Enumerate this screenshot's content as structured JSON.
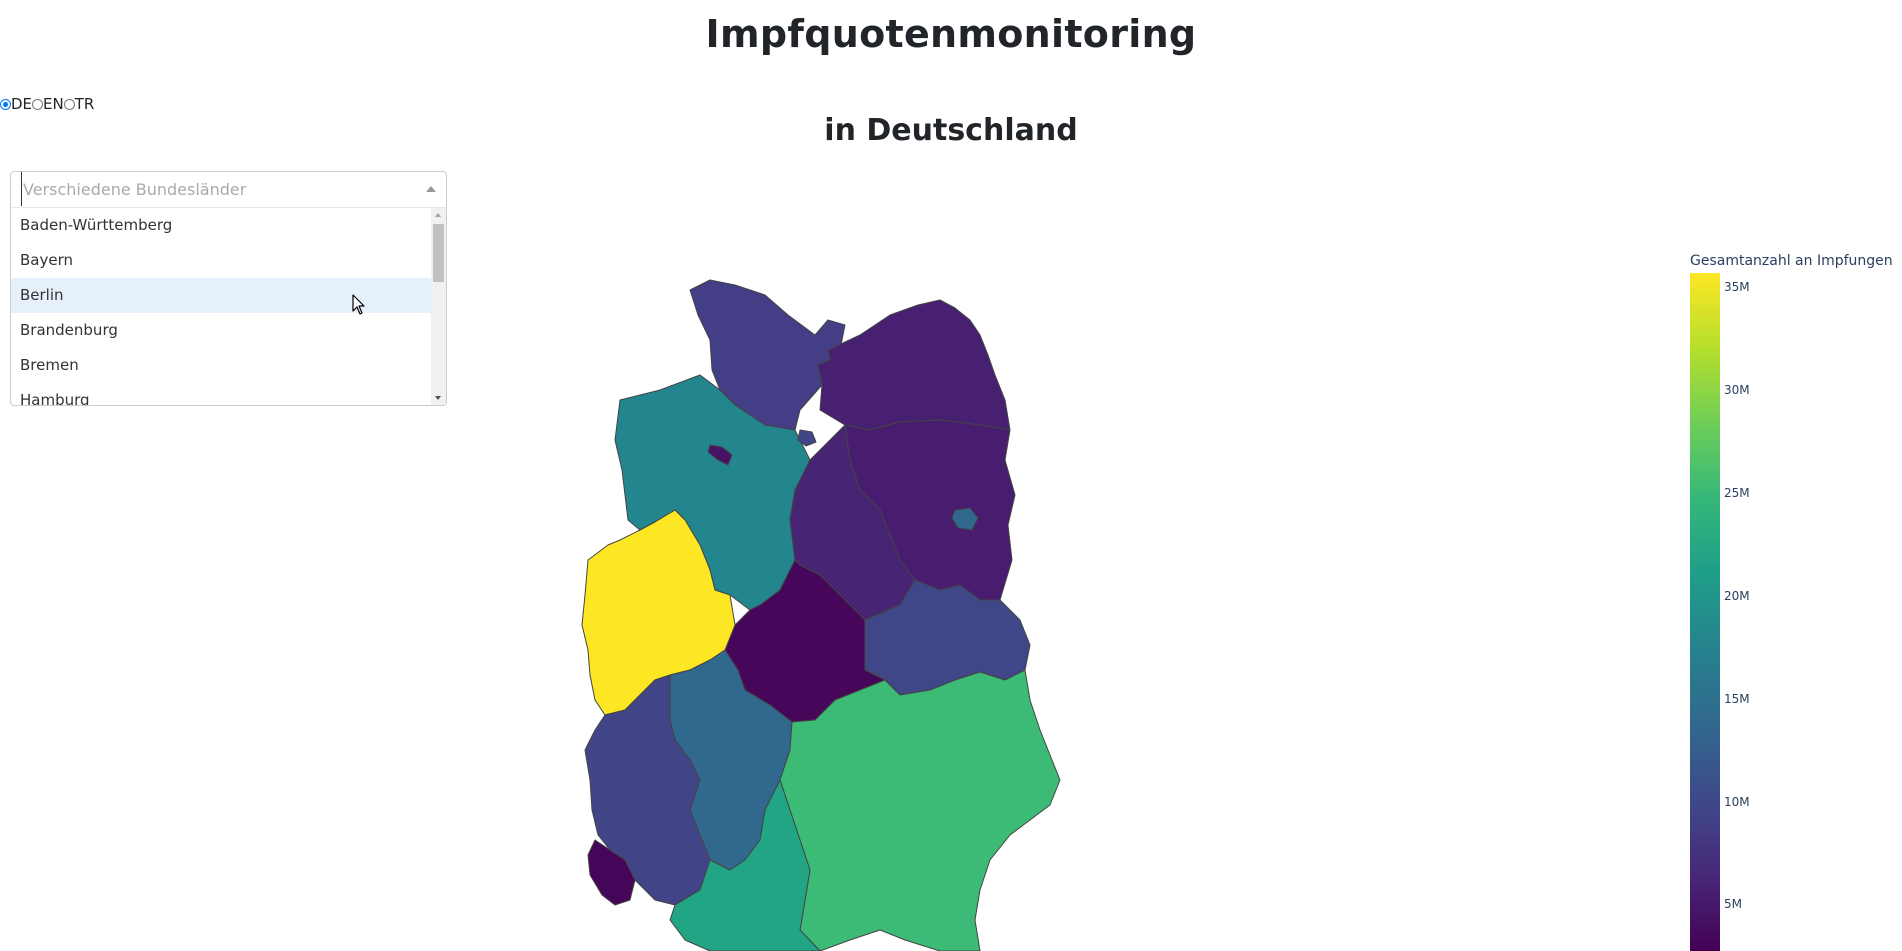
{
  "header": {
    "title": "Impfquotenmonitoring",
    "subtitle": "in Deutschland"
  },
  "language": {
    "options": [
      {
        "label": "DE",
        "selected": true
      },
      {
        "label": "EN",
        "selected": false
      },
      {
        "label": "TR",
        "selected": false
      }
    ]
  },
  "dropdown": {
    "placeholder": "Verschiedene Bundesländer",
    "items": [
      "Baden-Württemberg",
      "Bayern",
      "Berlin",
      "Brandenburg",
      "Bremen",
      "Hamburg"
    ],
    "focused": "Berlin"
  },
  "colorbar": {
    "title": "Gesamtanzahl an Impfungen",
    "ticks": [
      "35M",
      "30M",
      "25M",
      "20M",
      "15M",
      "10M",
      "5M"
    ],
    "colors": [
      "#440154",
      "#482878",
      "#3e4989",
      "#31688e",
      "#26828e",
      "#1f9e89",
      "#35b779",
      "#6ece58",
      "#b5de2b",
      "#fde725"
    ]
  },
  "icons": {
    "cursor": "mouse-pointer-icon",
    "caret": "caret-up-icon"
  }
}
